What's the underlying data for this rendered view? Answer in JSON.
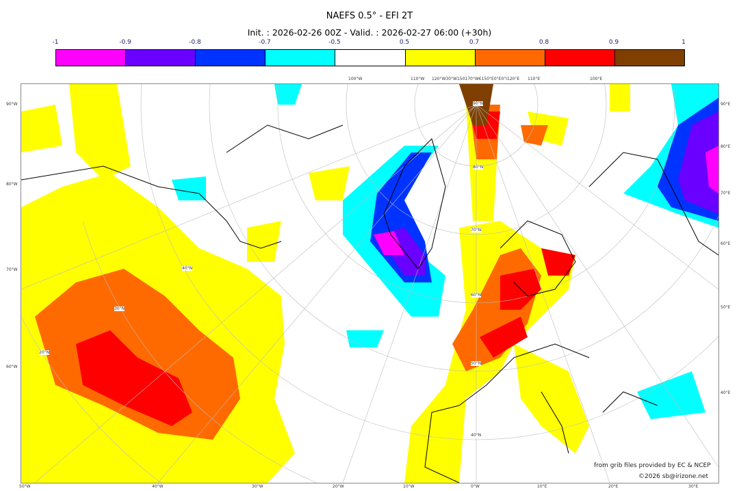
{
  "title": "NAEFS 0.5° - EFI 2T",
  "subtitle": "Init. : 2026-02-26 00Z - Valid. : 2026-02-27 06:00 (+30h)",
  "colorbar": {
    "ticks": [
      "-1",
      "-0.9",
      "-0.8",
      "-0.7",
      "-0.5",
      "0.5",
      "0.7",
      "0.8",
      "0.9",
      "1"
    ],
    "colors": [
      "#ff00ff",
      "#6a00ff",
      "#0033ff",
      "#00ffff",
      "#ffffff",
      "#ffff00",
      "#ff6a00",
      "#ff0000",
      "#7f3f00"
    ]
  },
  "axes": {
    "left": [
      "90°W",
      "80°W",
      "70°W",
      "60°W"
    ],
    "right": [
      "90°E",
      "80°E",
      "70°E",
      "60°E",
      "50°E",
      "40°E"
    ],
    "bottom": [
      "50°W",
      "40°W",
      "30°W",
      "20°W",
      "10°W",
      "0°W",
      "10°E",
      "20°E",
      "30°E"
    ],
    "top": [
      "100°W",
      "110°W",
      "120°W30°W150170°W€150°E0°E0°I120°E",
      "110°E",
      "100°E"
    ],
    "lat_labels": [
      "90°N",
      "80°N",
      "70°N",
      "60°N",
      "50°N",
      "40°N",
      "30°N",
      "20°N"
    ]
  },
  "credits": {
    "source": "from grib files provided by EC & NCEP",
    "copyright": "©2026 sb@irizone.net"
  }
}
